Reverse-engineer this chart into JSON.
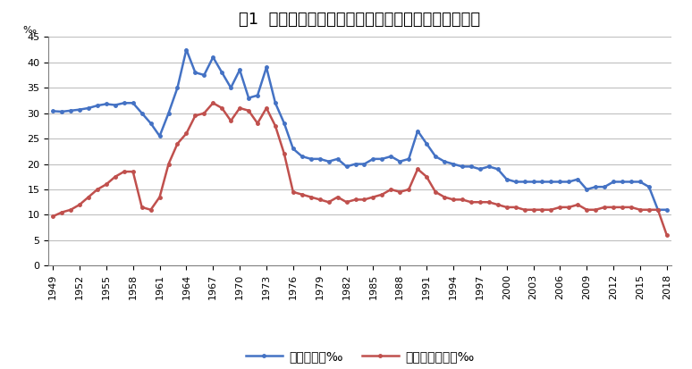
{
  "title": "图1  新中国成立以来新疆人口出生率、自然增长率变化",
  "ylabel": "‰",
  "ylim": [
    0,
    45
  ],
  "yticks": [
    0,
    5,
    10,
    15,
    20,
    25,
    30,
    35,
    40,
    45
  ],
  "birth_rate_years": [
    1949,
    1950,
    1951,
    1952,
    1953,
    1954,
    1955,
    1956,
    1957,
    1958,
    1959,
    1960,
    1961,
    1962,
    1963,
    1964,
    1965,
    1966,
    1967,
    1968,
    1969,
    1970,
    1971,
    1972,
    1973,
    1974,
    1975,
    1976,
    1977,
    1978,
    1979,
    1980,
    1981,
    1982,
    1983,
    1984,
    1985,
    1986,
    1987,
    1988,
    1989,
    1990,
    1991,
    1992,
    1993,
    1994,
    1995,
    1996,
    1997,
    1998,
    1999,
    2000,
    2001,
    2002,
    2003,
    2004,
    2005,
    2006,
    2007,
    2008,
    2009,
    2010,
    2011,
    2012,
    2013,
    2014,
    2015,
    2016,
    2017,
    2018
  ],
  "birth_rate_values": [
    30.4,
    30.3,
    30.5,
    30.7,
    31.0,
    31.5,
    31.8,
    31.6,
    32.0,
    32.0,
    30.0,
    28.0,
    25.5,
    30.0,
    35.0,
    42.5,
    38.0,
    37.5,
    41.0,
    38.0,
    35.0,
    38.5,
    33.0,
    33.5,
    39.0,
    32.0,
    28.0,
    23.0,
    21.5,
    21.0,
    21.0,
    20.5,
    21.0,
    19.5,
    20.0,
    20.0,
    21.0,
    21.0,
    21.5,
    20.5,
    21.0,
    26.5,
    24.0,
    21.5,
    20.5,
    20.0,
    19.5,
    19.5,
    19.0,
    19.5,
    19.0,
    17.0,
    16.5,
    16.5,
    16.5,
    16.5,
    16.5,
    16.5,
    16.5,
    17.0,
    15.0,
    15.5,
    15.5,
    16.5,
    16.5,
    16.5,
    16.5,
    15.5,
    11.0,
    11.0
  ],
  "natural_rate_years": [
    1949,
    1950,
    1951,
    1952,
    1953,
    1954,
    1955,
    1956,
    1957,
    1958,
    1959,
    1960,
    1961,
    1962,
    1963,
    1964,
    1965,
    1966,
    1967,
    1968,
    1969,
    1970,
    1971,
    1972,
    1973,
    1974,
    1975,
    1976,
    1977,
    1978,
    1979,
    1980,
    1981,
    1982,
    1983,
    1984,
    1985,
    1986,
    1987,
    1988,
    1989,
    1990,
    1991,
    1992,
    1993,
    1994,
    1995,
    1996,
    1997,
    1998,
    1999,
    2000,
    2001,
    2002,
    2003,
    2004,
    2005,
    2006,
    2007,
    2008,
    2009,
    2010,
    2011,
    2012,
    2013,
    2014,
    2015,
    2016,
    2017,
    2018
  ],
  "natural_rate_values": [
    9.7,
    10.5,
    11.0,
    12.0,
    13.5,
    15.0,
    16.0,
    17.5,
    18.5,
    18.5,
    11.5,
    11.0,
    13.5,
    20.0,
    24.0,
    26.0,
    29.5,
    30.0,
    32.0,
    31.0,
    28.5,
    31.0,
    30.5,
    28.0,
    31.0,
    27.5,
    22.0,
    14.5,
    14.0,
    13.5,
    13.0,
    12.5,
    13.5,
    12.5,
    13.0,
    13.0,
    13.5,
    14.0,
    15.0,
    14.5,
    15.0,
    19.0,
    17.5,
    14.5,
    13.5,
    13.0,
    13.0,
    12.5,
    12.5,
    12.5,
    12.0,
    11.5,
    11.5,
    11.0,
    11.0,
    11.0,
    11.0,
    11.5,
    11.5,
    12.0,
    11.0,
    11.0,
    11.5,
    11.5,
    11.5,
    11.5,
    11.0,
    11.0,
    11.0,
    6.0
  ],
  "birth_color": "#4472C4",
  "natural_color": "#C0504D",
  "birth_label": "人口出生率‰",
  "natural_label": "人口自然增长率‰",
  "xtick_years": [
    1949,
    1952,
    1955,
    1958,
    1961,
    1964,
    1967,
    1970,
    1973,
    1976,
    1979,
    1982,
    1985,
    1988,
    1991,
    1994,
    1997,
    2000,
    2003,
    2006,
    2009,
    2012,
    2015,
    2018
  ],
  "background_color": "#ffffff",
  "grid_color": "#bfbfbf",
  "title_fontsize": 13,
  "legend_fontsize": 10,
  "tick_fontsize": 8
}
